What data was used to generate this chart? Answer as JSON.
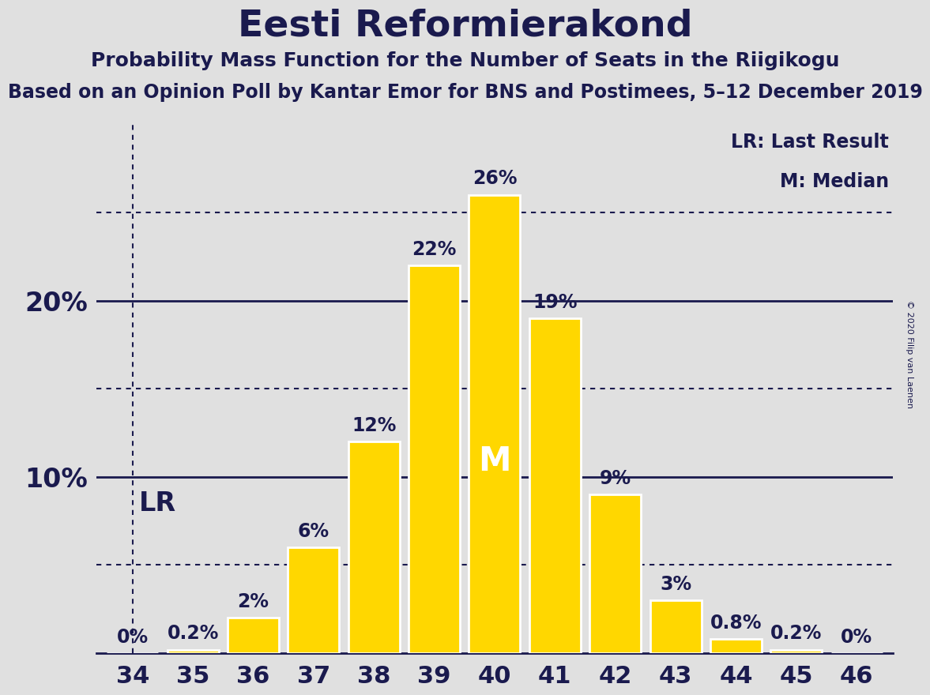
{
  "title": "Eesti Reformierakond",
  "subtitle1": "Probability Mass Function for the Number of Seats in the Riigikogu",
  "subtitle2": "Based on an Opinion Poll by Kantar Emor for BNS and Postimees, 5–12 December 2019",
  "copyright": "© 2020 Filip van Laenen",
  "seats": [
    34,
    35,
    36,
    37,
    38,
    39,
    40,
    41,
    42,
    43,
    44,
    45,
    46
  ],
  "probabilities": [
    0.0,
    0.2,
    2.0,
    6.0,
    12.0,
    22.0,
    26.0,
    19.0,
    9.0,
    3.0,
    0.8,
    0.2,
    0.0
  ],
  "bar_color": "#FFD700",
  "bar_edge_color": "#FFFFFF",
  "background_color": "#E0E0E0",
  "title_color": "#1A1A4E",
  "label_color": "#1A1A4E",
  "median_seat": 40,
  "lr_seat": 34,
  "lr_label": "LR",
  "median_label": "M",
  "legend_lr": "LR: Last Result",
  "legend_m": "M: Median",
  "solid_line_color": "#1A1A4E",
  "dotted_line_color": "#1A1A4E",
  "ylim": [
    0,
    30
  ],
  "solid_yticks": [
    10,
    20
  ],
  "dotted_yticks": [
    5,
    15,
    25
  ],
  "xlim": [
    33.4,
    46.6
  ],
  "bar_width": 0.85,
  "prob_labels": [
    "0%",
    "0.2%",
    "2%",
    "6%",
    "12%",
    "22%",
    "26%",
    "19%",
    "9%",
    "3%",
    "0.8%",
    "0.2%",
    "0%"
  ]
}
